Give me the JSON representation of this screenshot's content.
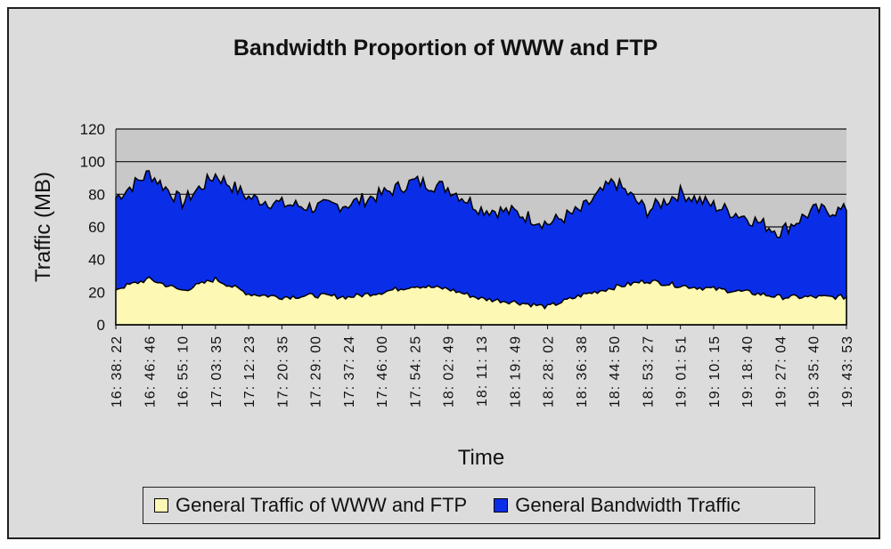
{
  "chart_data": {
    "type": "area",
    "title": "Bandwidth Proportion of WWW and FTP",
    "xlabel": "Time",
    "ylabel": "Traffic (MB)",
    "ylim": [
      0,
      120
    ],
    "yticks": [
      0,
      20,
      40,
      60,
      80,
      100,
      120
    ],
    "grid": "horizontal",
    "plot_background": "#c8c8c8",
    "legend_position": "bottom",
    "x": [
      "16:38:22",
      "16:46:46",
      "16:55:10",
      "17:03:35",
      "17:12:23",
      "17:20:35",
      "17:29:00",
      "17:37:24",
      "17:46:00",
      "17:54:25",
      "18:02:49",
      "18:11:13",
      "18:19:49",
      "18:28:02",
      "18:36:38",
      "18:44:50",
      "18:53:27",
      "19:01:51",
      "19:10:15",
      "19:18:40",
      "19:27:04",
      "19:35:40",
      "19:43:53"
    ],
    "x_tick_labels": [
      "16: 38: 22",
      "16: 46: 46",
      "16: 55: 10",
      "17: 03: 35",
      "17: 12: 23",
      "17: 20: 35",
      "17: 29: 00",
      "17: 37: 24",
      "17: 46: 00",
      "17: 54: 25",
      "18: 02: 49",
      "18: 11: 13",
      "18: 19: 49",
      "18: 28: 02",
      "18: 36: 38",
      "18: 44: 50",
      "18: 53: 27",
      "19: 01: 51",
      "19: 10: 15",
      "19: 18: 40",
      "19: 27: 04",
      "19: 35: 40",
      "19: 43: 53"
    ],
    "series": [
      {
        "name": "General Bandwidth Traffic",
        "color": "#0a2ee8",
        "values": [
          78,
          93,
          75,
          92,
          78,
          74,
          72,
          74,
          80,
          88,
          84,
          71,
          69,
          62,
          70,
          88,
          70,
          81,
          73,
          66,
          57,
          70,
          70
        ]
      },
      {
        "name": "General Traffic of WWW and FTP",
        "color": "#fdf8b4",
        "values": [
          22,
          28,
          21,
          28,
          19,
          17,
          18,
          17,
          20,
          24,
          22,
          16,
          14,
          11,
          18,
          23,
          27,
          24,
          22,
          20,
          17,
          17,
          17
        ]
      }
    ]
  },
  "legend": {
    "items": [
      {
        "label": "General Traffic of WWW and FTP",
        "color": "#fdf8b4"
      },
      {
        "label": "General Bandwidth Traffic",
        "color": "#0a2ee8"
      }
    ]
  }
}
